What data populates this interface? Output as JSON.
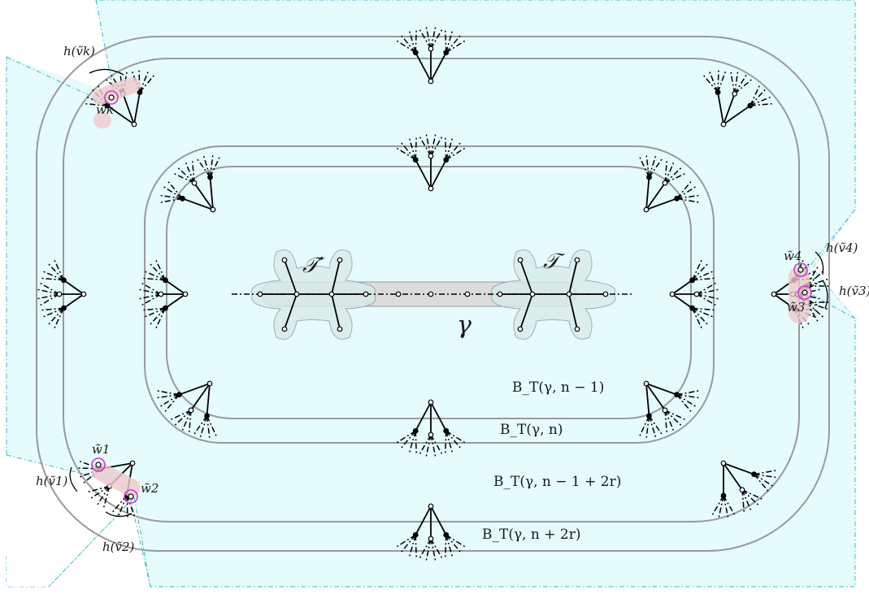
{
  "colors": {
    "region_fill": "#e6fbfb",
    "region_border": "#3cb8c4",
    "ring_stroke": "#9a9a9a",
    "highlight_fill": "#efc9cc",
    "marker_stroke": "#c93ad6",
    "cluster_fill": "#d6ecea",
    "core_fill": "#dcdcdc"
  },
  "labels": {
    "gamma": "γ",
    "tree": "𝒯",
    "tree_prime": "𝒯′",
    "ball_n_minus_1": "B_T(γ, n − 1)",
    "ball_n": "B_T(γ, n)",
    "ball_n_minus_1_plus_2r": "B_T(γ, n − 1 + 2r)",
    "ball_n_plus_2r": "B_T(γ, n + 2r)",
    "h_vk": "h(ṽk)",
    "h_v1": "h(ṽ1)",
    "h_v2": "h(ṽ2)",
    "h_v3": "h(ṽ3)",
    "h_v4": "h(ṽ4)",
    "w_k": "wk",
    "w_1": "w̃1",
    "w_2": "w̃2",
    "w_3": "w̃3",
    "w_4": "w̃4"
  }
}
